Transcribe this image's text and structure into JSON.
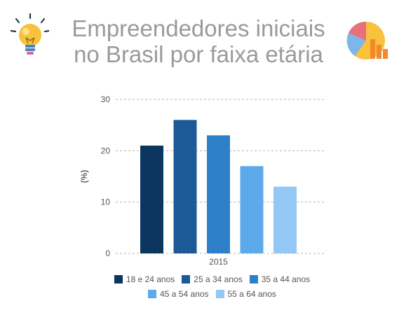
{
  "header": {
    "title_line1": "Empreendedores iniciais",
    "title_line2": "no Brasil por faixa etária",
    "left_icon": "lightbulb-icon",
    "right_icon": "pie-bar-chart-icon"
  },
  "chart_data": {
    "type": "bar",
    "categories": [
      "2015"
    ],
    "series": [
      {
        "name": "18 e 24 anos",
        "values": [
          21
        ],
        "color": "#0b3660"
      },
      {
        "name": "25 a 34 anos",
        "values": [
          26
        ],
        "color": "#1b5a97"
      },
      {
        "name": "35 a 44 anos",
        "values": [
          23
        ],
        "color": "#2e80c8"
      },
      {
        "name": "45 a 54 anos",
        "values": [
          17
        ],
        "color": "#5ca9eb"
      },
      {
        "name": "55 a 64 anos",
        "values": [
          13
        ],
        "color": "#93c7f4"
      }
    ],
    "title": "",
    "xlabel": "",
    "ylabel": "(%)",
    "ylim": [
      0,
      30
    ],
    "yticks": [
      "0",
      "10",
      "20",
      "30"
    ],
    "grid": true,
    "legend_position": "bottom"
  }
}
